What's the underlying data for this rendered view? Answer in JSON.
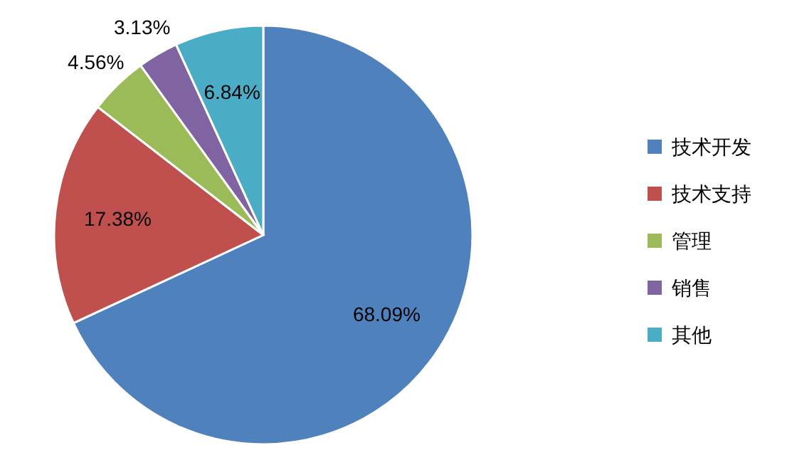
{
  "chart_data": {
    "type": "pie",
    "categories": [
      "技术开发",
      "技术支持",
      "管理",
      "销售",
      "其他"
    ],
    "values": [
      68.09,
      17.38,
      4.56,
      3.13,
      6.84
    ],
    "colors": [
      "#4f81bd",
      "#c0504d",
      "#9bbb59",
      "#8064a2",
      "#4bacc6"
    ],
    "value_labels": [
      "68.09%",
      "17.38%",
      "4.56%",
      "3.13%",
      "6.84%"
    ],
    "legend": "right"
  }
}
